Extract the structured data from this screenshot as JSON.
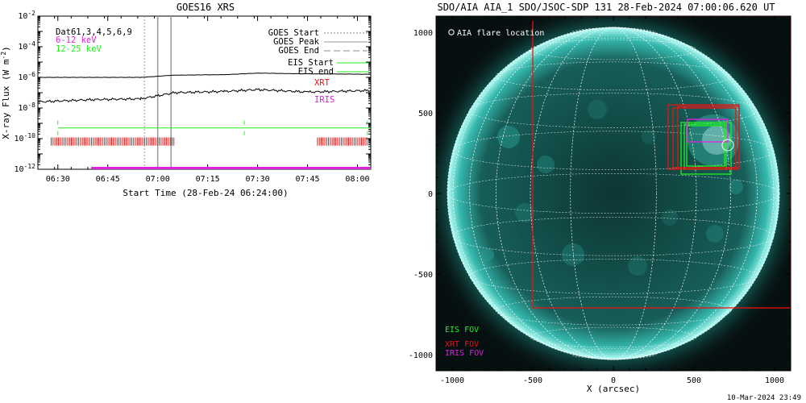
{
  "left_panel": {
    "title": "GOES16 XRS",
    "ylabel": "X-ray Flux (W m",
    "ylabel_sup": "-2",
    "ylabel_end": ")",
    "xlabel": "Start Time (28-Feb-24 06:24:00)",
    "series_labels": [
      "Dat61,3,4,5,6,9",
      "6-12 keV",
      "12-25 keV"
    ],
    "legend": [
      "GOES Start",
      "GOES Peak",
      "GOES End",
      "EIS Start",
      "EIS end",
      "XRT",
      "IRIS"
    ]
  },
  "right_panel": {
    "title": "SDO/AIA AIA_1 SDO/JSOC-SDP 131 28-Feb-2024 07:00:06.620 UT",
    "xlabel": "X (arcsec)",
    "flare_label": "AIA flare location",
    "fov_labels": [
      "EIS FOV",
      "XRT FOV",
      "IRIS FOV"
    ],
    "footer": "10-Mar-2024 23:49"
  },
  "colors": {
    "eis": "#22ee22",
    "xrt": "#ee1111",
    "iris": "#dd22dd",
    "sun_glow": "#1fa59a"
  },
  "chart_data": [
    {
      "type": "line",
      "title": "GOES16 XRS",
      "ylabel": "X-ray Flux (W m-2)",
      "xlabel": "Start Time (28-Feb-24 06:24:00)",
      "yscale": "log",
      "ylim": [
        1e-12,
        0.01
      ],
      "xlim": [
        "06:24",
        "08:04"
      ],
      "xticks": [
        "06:30",
        "06:45",
        "07:00",
        "07:15",
        "07:30",
        "07:45",
        "08:00"
      ],
      "yticks": [
        "10^-12",
        "10^-10",
        "10^-8",
        "10^-6",
        "10^-4",
        "10^-2"
      ],
      "series": [
        {
          "name": "6-12 keV",
          "x": [
            "06:24",
            "06:40",
            "06:55",
            "07:05",
            "07:20",
            "07:30",
            "07:45",
            "08:04"
          ],
          "values": [
            1e-06,
            1e-06,
            1e-06,
            1.4e-06,
            1.5e-06,
            1.9e-06,
            1.7e-06,
            1.6e-06
          ]
        },
        {
          "name": "12-25 keV",
          "x": [
            "06:24",
            "06:40",
            "06:55",
            "07:05",
            "07:20",
            "07:30",
            "07:45",
            "08:04"
          ],
          "values": [
            2.5e-08,
            3.5e-08,
            4e-08,
            1e-07,
            1.2e-07,
            1.6e-07,
            1.1e-07,
            1.4e-07
          ]
        }
      ],
      "vlines": {
        "goes_start": "06:56",
        "goes_peak": "07:00",
        "goes_end": "07:04",
        "eis_marks": [
          "06:30",
          "07:26",
          "08:03"
        ]
      },
      "xrt_range": [
        [
          "06:28",
          "07:05"
        ],
        [
          "07:48",
          "08:03"
        ]
      ],
      "iris_range": [
        "06:40",
        "08:04"
      ]
    },
    {
      "type": "scatter",
      "title": "SDO/AIA AIA_1 SDO/JSOC-SDP 131 28-Feb-2024 07:00:06.620 UT",
      "xlabel": "X (arcsec)",
      "xlim": [
        -1100,
        1100
      ],
      "ylim": [
        -1100,
        1100
      ],
      "xticks": [
        -1000,
        -500,
        0,
        500,
        1000
      ],
      "yticks": [
        -1000,
        -500,
        0,
        500,
        1000
      ],
      "solar_radius": 1030,
      "flare_location": [
        710,
        300
      ],
      "fovs": [
        {
          "name": "EIS FOV",
          "rects": [
            [
              420,
              120,
              730,
              440
            ],
            [
              440,
              150,
              700,
              430
            ],
            [
              455,
              170,
              690,
              420
            ]
          ]
        },
        {
          "name": "XRT FOV",
          "rects": [
            [
              340,
              150,
              780,
              550
            ],
            [
              370,
              160,
              760,
              530
            ],
            [
              400,
              160,
              780,
              540
            ],
            [
              -500,
              -710,
              1100,
              1100
            ]
          ]
        },
        {
          "name": "IRIS FOV",
          "rects": [
            [
              460,
              320,
              710,
              460
            ]
          ]
        }
      ]
    }
  ]
}
